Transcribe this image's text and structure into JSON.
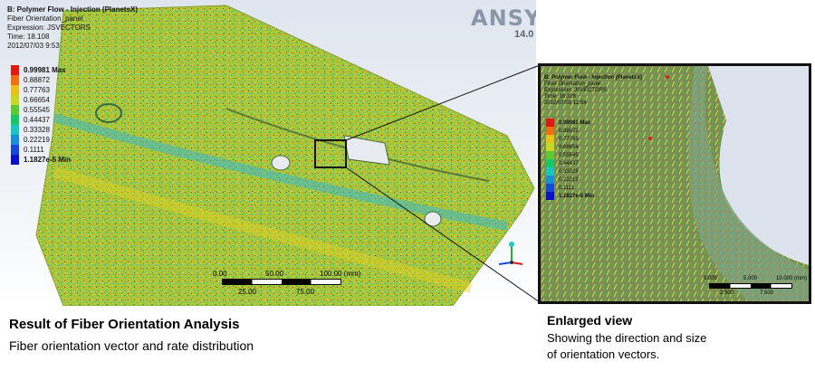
{
  "main_view": {
    "header": {
      "title": "B: Polymer Flow - Injection (PlanetsX)",
      "line1": "Fiber Orientation_panel",
      "line2": "Expression: JSVECTORS",
      "line3": "Time: 18.108",
      "line4": "2012/07/03 9:53"
    },
    "logo": {
      "brand": "ANSYS",
      "version": "14.0"
    },
    "legend": {
      "entries": [
        {
          "label": "0.99981 Max",
          "color": "#e01a10"
        },
        {
          "label": "0.88872",
          "color": "#f07010"
        },
        {
          "label": "0.77763",
          "color": "#e8c018"
        },
        {
          "label": "0.66654",
          "color": "#c8d820"
        },
        {
          "label": "0.55545",
          "color": "#60c830"
        },
        {
          "label": "0.44437",
          "color": "#18c868"
        },
        {
          "label": "0.33328",
          "color": "#18c8c0"
        },
        {
          "label": "0.22219",
          "color": "#1890d8"
        },
        {
          "label": "0.1111",
          "color": "#1848d8"
        },
        {
          "label": "1.1827e-5 Min",
          "color": "#0a10c8"
        }
      ]
    },
    "scale": {
      "top_labels": [
        "0.00",
        "50.00",
        "100.00 (mm)"
      ],
      "bottom_labels": [
        "25.00",
        "75.00"
      ]
    }
  },
  "zoom_view": {
    "header": {
      "title": "B: Polymer Flow - Injection (PlanetsX)",
      "line1": "Fiber Orientation_panel",
      "line2": "Expression: JSVECTORS",
      "line3": "Time: 18.108",
      "line4": "2012/07/03 12:54"
    },
    "legend": {
      "entries": [
        {
          "label": "0.99981 Max",
          "color": "#e01a10"
        },
        {
          "label": "0.88872",
          "color": "#f07010"
        },
        {
          "label": "0.77763",
          "color": "#e8c018"
        },
        {
          "label": "0.66654",
          "color": "#c8d820"
        },
        {
          "label": "0.55545",
          "color": "#60c830"
        },
        {
          "label": "0.44437",
          "color": "#18c868"
        },
        {
          "label": "0.33328",
          "color": "#18c8c0"
        },
        {
          "label": "0.22219",
          "color": "#1890d8"
        },
        {
          "label": "0.1111",
          "color": "#1848d8"
        },
        {
          "label": "1.1827e-5 Min",
          "color": "#0a10c8"
        }
      ]
    },
    "scale": {
      "top_labels": [
        "0.000",
        "5.000",
        "10.000 (mm)"
      ],
      "bottom_labels": [
        "2.500",
        "7.500"
      ]
    }
  },
  "captions": {
    "left_title": "Result of Fiber Orientation Analysis",
    "left_sub": "Fiber orientation vector and rate distribution",
    "right_title": "Enlarged view",
    "right_line1": "Showing the direction and size",
    "right_line2": "of orientation vectors."
  }
}
